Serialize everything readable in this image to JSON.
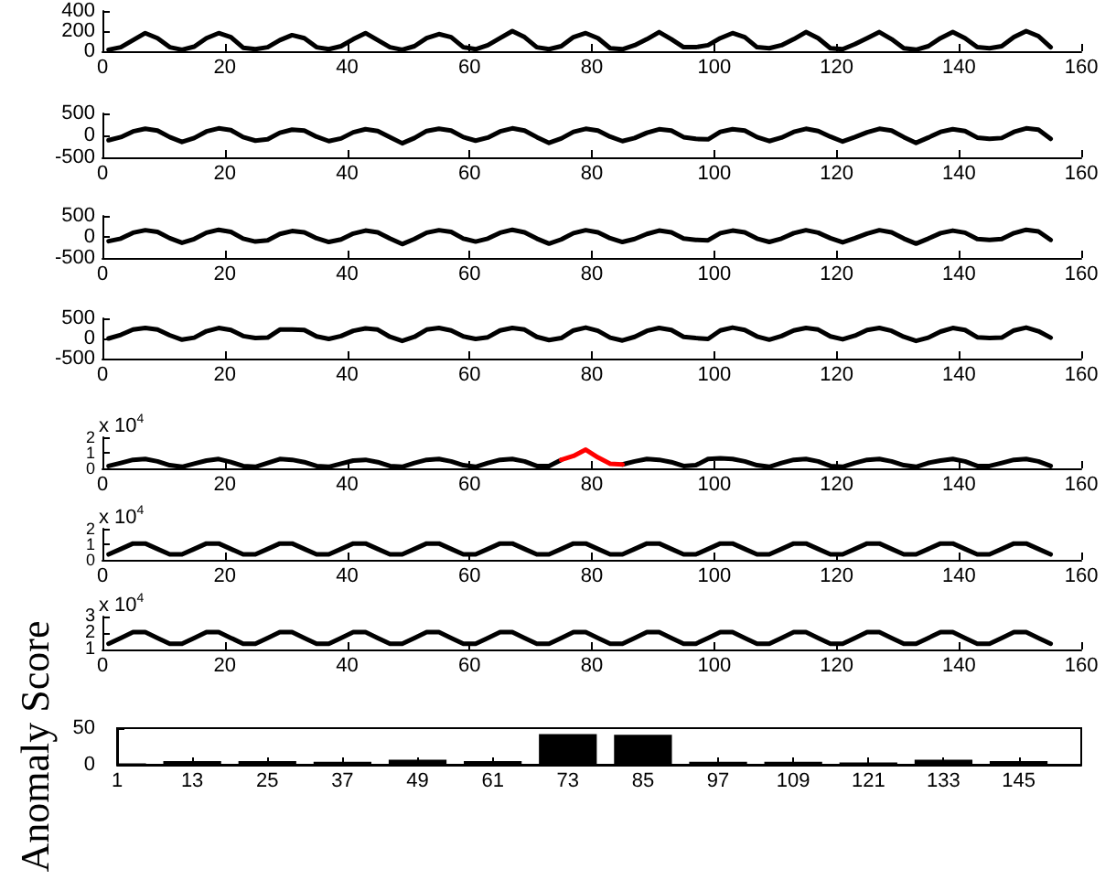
{
  "chart_data": [
    {
      "type": "line",
      "marker": "none",
      "x": [
        1,
        3,
        5,
        7,
        9,
        11,
        13,
        15,
        17,
        19,
        21,
        23,
        25,
        27,
        29,
        31,
        33,
        35,
        37,
        39,
        41,
        43,
        45,
        47,
        49,
        51,
        53,
        55,
        57,
        59,
        61,
        63,
        65,
        67,
        69,
        71,
        73,
        75,
        77,
        79,
        81,
        83,
        85,
        87,
        89,
        91,
        93,
        95,
        97,
        99,
        101,
        103,
        105,
        107,
        109,
        111,
        113,
        115,
        117,
        119,
        121,
        123,
        125,
        127,
        129,
        131,
        133,
        135,
        137,
        139,
        141,
        143,
        145,
        147,
        149,
        151,
        153,
        155
      ],
      "series": [
        {
          "color": "#000000",
          "values": [
            15,
            40,
            110,
            180,
            130,
            40,
            15,
            45,
            130,
            180,
            140,
            35,
            20,
            40,
            110,
            160,
            130,
            40,
            20,
            50,
            120,
            180,
            110,
            40,
            15,
            50,
            130,
            170,
            140,
            40,
            20,
            60,
            130,
            200,
            140,
            40,
            20,
            50,
            140,
            180,
            130,
            30,
            20,
            60,
            120,
            190,
            120,
            40,
            40,
            60,
            130,
            180,
            140,
            40,
            30,
            60,
            120,
            190,
            130,
            30,
            20,
            70,
            130,
            190,
            120,
            30,
            15,
            50,
            130,
            190,
            130,
            40,
            30,
            50,
            140,
            200,
            150,
            40
          ]
        }
      ],
      "xlim": [
        0,
        160
      ],
      "xticks": [
        0,
        20,
        40,
        60,
        80,
        100,
        120,
        140,
        160
      ],
      "ylim": [
        0,
        400
      ],
      "yticks": [
        0,
        200,
        400
      ]
    },
    {
      "type": "line",
      "marker": "none",
      "x": [
        1,
        3,
        5,
        7,
        9,
        11,
        13,
        15,
        17,
        19,
        21,
        23,
        25,
        27,
        29,
        31,
        33,
        35,
        37,
        39,
        41,
        43,
        45,
        47,
        49,
        51,
        53,
        55,
        57,
        59,
        61,
        63,
        65,
        67,
        69,
        71,
        73,
        75,
        77,
        79,
        81,
        83,
        85,
        87,
        89,
        91,
        93,
        95,
        97,
        99,
        101,
        103,
        105,
        107,
        109,
        111,
        113,
        115,
        117,
        119,
        121,
        123,
        125,
        127,
        129,
        131,
        133,
        135,
        137,
        139,
        141,
        143,
        145,
        147,
        149,
        151,
        153,
        155
      ],
      "series": [
        {
          "color": "#000000",
          "values": [
            -110,
            -40,
            90,
            150,
            110,
            -40,
            -150,
            -60,
            90,
            160,
            120,
            -40,
            -120,
            -90,
            60,
            130,
            110,
            -30,
            -130,
            -70,
            70,
            140,
            100,
            -40,
            -180,
            -60,
            100,
            150,
            110,
            -40,
            -120,
            -50,
            90,
            160,
            110,
            -40,
            -170,
            -70,
            80,
            150,
            110,
            -30,
            -130,
            -60,
            60,
            140,
            110,
            -40,
            -80,
            -90,
            80,
            140,
            110,
            -40,
            -130,
            -50,
            80,
            150,
            100,
            -30,
            -140,
            -40,
            70,
            150,
            110,
            -40,
            -170,
            -50,
            80,
            140,
            100,
            -50,
            -80,
            -60,
            80,
            160,
            130,
            -80
          ]
        }
      ],
      "xlim": [
        0,
        160
      ],
      "xticks": [
        0,
        20,
        40,
        60,
        80,
        100,
        120,
        140,
        160
      ],
      "ylim": [
        -500,
        500
      ],
      "yticks": [
        -500,
        0,
        500
      ]
    },
    {
      "type": "line",
      "marker": "none",
      "x": [
        1,
        3,
        5,
        7,
        9,
        11,
        13,
        15,
        17,
        19,
        21,
        23,
        25,
        27,
        29,
        31,
        33,
        35,
        37,
        39,
        41,
        43,
        45,
        47,
        49,
        51,
        53,
        55,
        57,
        59,
        61,
        63,
        65,
        67,
        69,
        71,
        73,
        75,
        77,
        79,
        81,
        83,
        85,
        87,
        89,
        91,
        93,
        95,
        97,
        99,
        101,
        103,
        105,
        107,
        109,
        111,
        113,
        115,
        117,
        119,
        121,
        123,
        125,
        127,
        129,
        131,
        133,
        135,
        137,
        139,
        141,
        143,
        145,
        147,
        149,
        151,
        153,
        155
      ],
      "series": [
        {
          "color": "#000000",
          "values": [
            -100,
            -40,
            100,
            160,
            120,
            -30,
            -140,
            -50,
            100,
            170,
            120,
            -40,
            -110,
            -80,
            70,
            140,
            110,
            -30,
            -120,
            -60,
            80,
            150,
            110,
            -40,
            -170,
            -50,
            100,
            160,
            120,
            -40,
            -110,
            -40,
            100,
            170,
            110,
            -40,
            -160,
            -60,
            90,
            160,
            110,
            -30,
            -120,
            -50,
            70,
            150,
            110,
            -40,
            -70,
            -80,
            90,
            150,
            110,
            -40,
            -120,
            -40,
            90,
            160,
            100,
            -30,
            -130,
            -30,
            80,
            160,
            110,
            -40,
            -160,
            -40,
            90,
            150,
            100,
            -50,
            -70,
            -50,
            90,
            170,
            130,
            -70
          ]
        }
      ],
      "xlim": [
        0,
        160
      ],
      "xticks": [
        0,
        20,
        40,
        60,
        80,
        100,
        120,
        140,
        160
      ],
      "ylim": [
        -500,
        500
      ],
      "yticks": [
        -500,
        0,
        500
      ]
    },
    {
      "type": "line",
      "marker": "none",
      "x": [
        1,
        3,
        5,
        7,
        9,
        11,
        13,
        15,
        17,
        19,
        21,
        23,
        25,
        27,
        29,
        31,
        33,
        35,
        37,
        39,
        41,
        43,
        45,
        47,
        49,
        51,
        53,
        55,
        57,
        59,
        61,
        63,
        65,
        67,
        69,
        71,
        73,
        75,
        77,
        79,
        81,
        83,
        85,
        87,
        89,
        91,
        93,
        95,
        97,
        99,
        101,
        103,
        105,
        107,
        109,
        111,
        113,
        115,
        117,
        119,
        121,
        123,
        125,
        127,
        129,
        131,
        133,
        135,
        137,
        139,
        141,
        143,
        145,
        147,
        149,
        151,
        153,
        155
      ],
      "series": [
        {
          "color": "#000000",
          "values": [
            0,
            90,
            220,
            260,
            220,
            80,
            -30,
            20,
            180,
            260,
            210,
            60,
            10,
            20,
            220,
            220,
            210,
            50,
            -10,
            60,
            190,
            250,
            220,
            40,
            -60,
            40,
            220,
            260,
            200,
            50,
            -10,
            30,
            200,
            260,
            220,
            40,
            -40,
            10,
            200,
            270,
            190,
            20,
            -50,
            40,
            190,
            260,
            210,
            40,
            10,
            -10,
            200,
            270,
            210,
            50,
            -30,
            60,
            200,
            260,
            220,
            50,
            -20,
            70,
            210,
            260,
            190,
            40,
            -60,
            20,
            170,
            260,
            210,
            30,
            10,
            20,
            200,
            270,
            180,
            20
          ]
        }
      ],
      "xlim": [
        0,
        160
      ],
      "xticks": [
        0,
        20,
        40,
        60,
        80,
        100,
        120,
        140,
        160
      ],
      "ylim": [
        -500,
        500
      ],
      "yticks": [
        -500,
        0,
        500
      ]
    },
    {
      "type": "line",
      "marker": "none",
      "annotations": [
        "x 10$^{4}$"
      ],
      "x": [
        1,
        3,
        5,
        7,
        9,
        11,
        13,
        15,
        17,
        19,
        21,
        23,
        25,
        27,
        29,
        31,
        33,
        35,
        37,
        39,
        41,
        43,
        45,
        47,
        49,
        51,
        53,
        55,
        57,
        59,
        61,
        63,
        65,
        67,
        69,
        71,
        73,
        75,
        77,
        79,
        81,
        83,
        85,
        87,
        89,
        91,
        93,
        95,
        97,
        99,
        101,
        103,
        105,
        107,
        109,
        111,
        113,
        115,
        117,
        119,
        121,
        123,
        125,
        127,
        129,
        131,
        133,
        135,
        137,
        139,
        141,
        143,
        145,
        147,
        149,
        151,
        153,
        155
      ],
      "series": [
        {
          "color": "#000000",
          "values": [
            0.15,
            0.35,
            0.55,
            0.6,
            0.45,
            0.2,
            0.1,
            0.3,
            0.5,
            0.6,
            0.4,
            0.15,
            0.1,
            0.35,
            0.6,
            0.55,
            0.4,
            0.15,
            0.1,
            0.3,
            0.5,
            0.55,
            0.4,
            0.15,
            0.1,
            0.35,
            0.55,
            0.6,
            0.45,
            0.2,
            0.1,
            0.35,
            0.55,
            0.6,
            0.45,
            0.15,
            0.15,
            0.55,
            null,
            null,
            null,
            null,
            0.25,
            0.45,
            0.6,
            0.55,
            0.4,
            0.15,
            0.2,
            0.6,
            0.65,
            0.6,
            0.45,
            0.2,
            0.1,
            0.35,
            0.55,
            0.6,
            0.45,
            0.15,
            0.1,
            0.35,
            0.55,
            0.6,
            0.45,
            0.2,
            0.1,
            0.35,
            0.5,
            0.6,
            0.45,
            0.15,
            0.15,
            0.35,
            0.55,
            0.6,
            0.45,
            0.15
          ]
        },
        {
          "color": "#ff0000",
          "x": [
            75,
            77,
            79,
            81,
            83,
            85
          ],
          "values": [
            0.55,
            0.8,
            1.2,
            0.7,
            0.3,
            0.25
          ]
        }
      ],
      "xlim": [
        0,
        160
      ],
      "xticks": [
        0,
        20,
        40,
        60,
        80,
        100,
        120,
        140,
        160
      ],
      "ylim": [
        0,
        2
      ],
      "yticks": [
        0,
        1,
        2
      ]
    },
    {
      "type": "line",
      "marker": "none",
      "annotations": [
        "x 10$^{4}$"
      ],
      "x": [
        1,
        3,
        5,
        7,
        9,
        11,
        13,
        15,
        17,
        19,
        21,
        23,
        25,
        27,
        29,
        31,
        33,
        35,
        37,
        39,
        41,
        43,
        45,
        47,
        49,
        51,
        53,
        55,
        57,
        59,
        61,
        63,
        65,
        67,
        69,
        71,
        73,
        75,
        77,
        79,
        81,
        83,
        85,
        87,
        89,
        91,
        93,
        95,
        97,
        99,
        101,
        103,
        105,
        107,
        109,
        111,
        113,
        115,
        117,
        119,
        121,
        123,
        125,
        127,
        129,
        131,
        133,
        135,
        137,
        139,
        141,
        143,
        145,
        147,
        149,
        151,
        153,
        155
      ],
      "series": [
        {
          "color": "#000000",
          "values": [
            0.35,
            0.7,
            1.05,
            1.05,
            0.7,
            0.35,
            0.35,
            0.7,
            1.05,
            1.05,
            0.7,
            0.35,
            0.35,
            0.7,
            1.05,
            1.05,
            0.7,
            0.35,
            0.35,
            0.7,
            1.05,
            1.05,
            0.7,
            0.35,
            0.35,
            0.7,
            1.05,
            1.05,
            0.7,
            0.35,
            0.35,
            0.7,
            1.05,
            1.05,
            0.7,
            0.35,
            0.35,
            0.7,
            1.05,
            1.05,
            0.7,
            0.35,
            0.35,
            0.7,
            1.05,
            1.05,
            0.7,
            0.35,
            0.35,
            0.7,
            1.05,
            1.05,
            0.7,
            0.35,
            0.35,
            0.7,
            1.05,
            1.05,
            0.7,
            0.35,
            0.35,
            0.7,
            1.05,
            1.05,
            0.7,
            0.35,
            0.35,
            0.7,
            1.05,
            1.05,
            0.7,
            0.35,
            0.35,
            0.7,
            1.05,
            1.05,
            0.7,
            0.35
          ]
        }
      ],
      "xlim": [
        0,
        160
      ],
      "xticks": [
        0,
        20,
        40,
        60,
        80,
        100,
        120,
        140,
        160
      ],
      "ylim": [
        0,
        2
      ],
      "yticks": [
        0,
        1,
        2
      ]
    },
    {
      "type": "line",
      "marker": "none",
      "annotations": [
        "x 10$^{4}$"
      ],
      "x": [
        1,
        3,
        5,
        7,
        9,
        11,
        13,
        15,
        17,
        19,
        21,
        23,
        25,
        27,
        29,
        31,
        33,
        35,
        37,
        39,
        41,
        43,
        45,
        47,
        49,
        51,
        53,
        55,
        57,
        59,
        61,
        63,
        65,
        67,
        69,
        71,
        73,
        75,
        77,
        79,
        81,
        83,
        85,
        87,
        89,
        91,
        93,
        95,
        97,
        99,
        101,
        103,
        105,
        107,
        109,
        111,
        113,
        115,
        117,
        119,
        121,
        123,
        125,
        127,
        129,
        131,
        133,
        135,
        137,
        139,
        141,
        143,
        145,
        147,
        149,
        151,
        153,
        155
      ],
      "series": [
        {
          "color": "#000000",
          "values": [
            1.35,
            1.7,
            2.05,
            2.05,
            1.7,
            1.35,
            1.35,
            1.7,
            2.05,
            2.05,
            1.7,
            1.35,
            1.35,
            1.7,
            2.05,
            2.05,
            1.7,
            1.35,
            1.35,
            1.7,
            2.05,
            2.05,
            1.7,
            1.35,
            1.35,
            1.7,
            2.05,
            2.05,
            1.7,
            1.35,
            1.35,
            1.7,
            2.05,
            2.05,
            1.7,
            1.35,
            1.35,
            1.7,
            2.05,
            2.05,
            1.7,
            1.35,
            1.35,
            1.7,
            2.05,
            2.05,
            1.7,
            1.35,
            1.35,
            1.7,
            2.05,
            2.05,
            1.7,
            1.35,
            1.35,
            1.7,
            2.05,
            2.05,
            1.7,
            1.35,
            1.35,
            1.7,
            2.05,
            2.05,
            1.7,
            1.35,
            1.35,
            1.7,
            2.05,
            2.05,
            1.7,
            1.35,
            1.35,
            1.7,
            2.05,
            2.05,
            1.7,
            1.35
          ]
        }
      ],
      "xlim": [
        0,
        160
      ],
      "xticks": [
        0,
        20,
        40,
        60,
        80,
        100,
        120,
        140,
        160
      ],
      "ylim": [
        1,
        3
      ],
      "yticks": [
        1,
        2,
        3
      ]
    },
    {
      "type": "bar",
      "ylabel": "Anomaly Score",
      "color": "#000000",
      "x": [
        1,
        13,
        25,
        37,
        49,
        61,
        73,
        85,
        97,
        109,
        121,
        133,
        145
      ],
      "values": [
        2,
        5,
        5,
        4,
        7,
        5,
        42,
        41,
        4,
        4,
        3,
        7,
        5
      ],
      "xlim": [
        1,
        155
      ],
      "xticks": [
        1,
        13,
        25,
        37,
        49,
        61,
        73,
        85,
        97,
        109,
        121,
        133,
        145
      ],
      "ylim": [
        0,
        50
      ],
      "yticks": [
        0,
        50
      ]
    }
  ]
}
